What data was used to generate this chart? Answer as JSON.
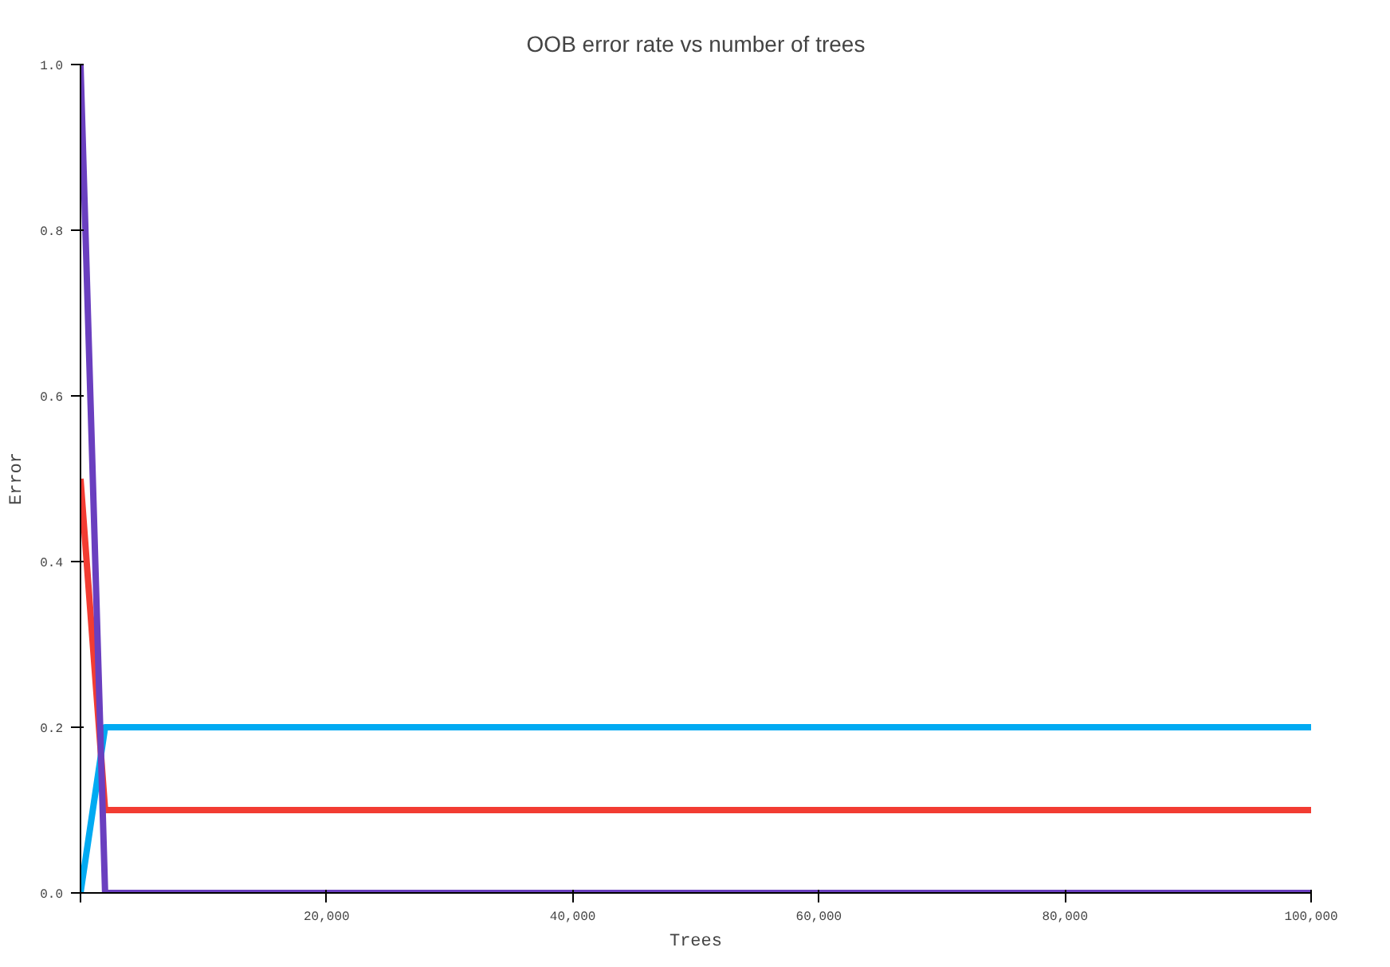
{
  "chart_data": {
    "type": "line",
    "title": "OOB error rate vs number of trees",
    "xlabel": "Trees",
    "ylabel": "Error",
    "x": [
      0,
      2000,
      100000
    ],
    "series": [
      {
        "color": "#f23c32",
        "values": [
          0.5,
          0.1,
          0.1
        ]
      },
      {
        "color": "#00aaf2",
        "values": [
          0,
          0.2,
          0.2
        ]
      },
      {
        "color": "#6a3fbf",
        "values": [
          1,
          0,
          0
        ]
      }
    ],
    "xlim": [
      0,
      100000
    ],
    "ylim": [
      0,
      1
    ],
    "xticks": [
      {
        "value": 0,
        "label": null
      },
      {
        "value": 20000,
        "label": "20,000"
      },
      {
        "value": 40000,
        "label": "40,000"
      },
      {
        "value": 60000,
        "label": "60,000"
      },
      {
        "value": 80000,
        "label": "80,000"
      },
      {
        "value": 100000,
        "label": "100,000"
      }
    ],
    "yticks": [
      {
        "value": 0,
        "label": "0.0"
      },
      {
        "value": 0.2,
        "label": "0.2"
      },
      {
        "value": 0.4,
        "label": "0.4"
      },
      {
        "value": 0.6,
        "label": "0.6"
      },
      {
        "value": 0.8,
        "label": "0.8"
      },
      {
        "value": 1,
        "label": "1.0"
      }
    ],
    "grid": false,
    "line_style": "solid",
    "marker": "none"
  }
}
